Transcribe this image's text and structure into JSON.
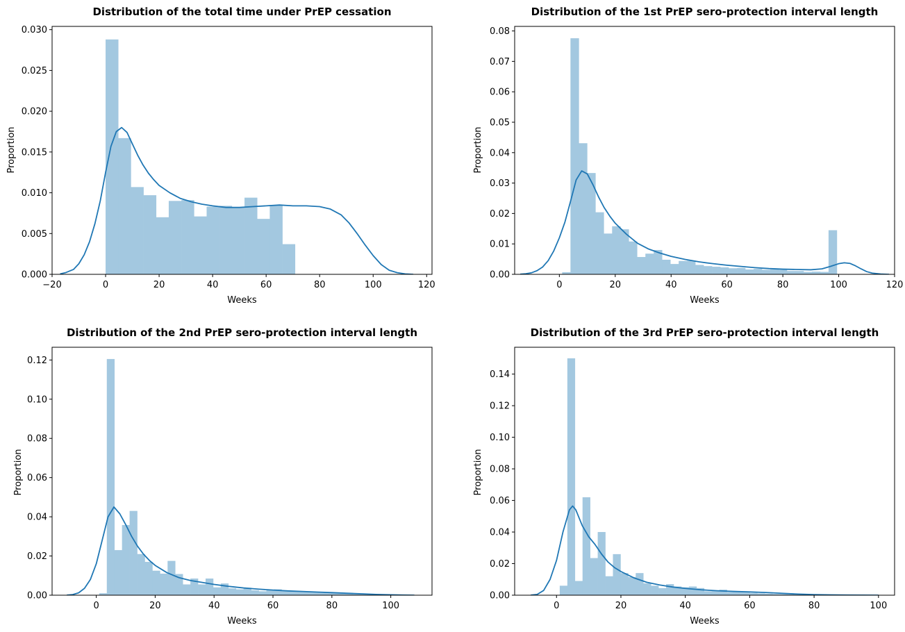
{
  "colors": {
    "bar_fill": "#a3c8e0",
    "kde_line": "#1f77b4",
    "axes": "#000000",
    "background": "#ffffff"
  },
  "chart_data": [
    {
      "type": "bar",
      "subtype": "histogram_with_kde",
      "title": "Distribution of the total time under PrEP cessation",
      "xlabel": "Weeks",
      "ylabel": "Proportion",
      "xlim": [
        -20,
        122
      ],
      "ylim": [
        0,
        0.0304
      ],
      "xticks": [
        -20,
        0,
        20,
        40,
        60,
        80,
        100,
        120
      ],
      "yticks": [
        0.0,
        0.005,
        0.01,
        0.015,
        0.02,
        0.025,
        0.03
      ],
      "ytick_labels": [
        "0.000",
        "0.005",
        "0.010",
        "0.015",
        "0.020",
        "0.025",
        "0.030"
      ],
      "grid": false,
      "bins": {
        "start": 0,
        "width": 4.72,
        "values": [
          0.0288,
          0.0167,
          0.0107,
          0.0097,
          0.007,
          0.009,
          0.0091,
          0.0071,
          0.0083,
          0.0084,
          0.0082,
          0.0094,
          0.0068,
          0.0085,
          0.0037
        ]
      },
      "kde": {
        "x": [
          -17,
          -15,
          -12,
          -10,
          -8,
          -6,
          -4,
          -2,
          0,
          2,
          4,
          6,
          8,
          10,
          12,
          14,
          16,
          18,
          20,
          24,
          28,
          32,
          36,
          40,
          45,
          50,
          55,
          60,
          65,
          70,
          75,
          80,
          84,
          88,
          91,
          94,
          97,
          100,
          103,
          106,
          109,
          112,
          115
        ],
        "y": [
          5e-05,
          0.0002,
          0.0006,
          0.0013,
          0.0024,
          0.004,
          0.0062,
          0.009,
          0.0125,
          0.0157,
          0.0175,
          0.018,
          0.0174,
          0.016,
          0.0146,
          0.0134,
          0.0124,
          0.0116,
          0.0109,
          0.01,
          0.0093,
          0.0089,
          0.0086,
          0.0084,
          0.0082,
          0.0082,
          0.0083,
          0.0084,
          0.0085,
          0.0084,
          0.0084,
          0.0083,
          0.008,
          0.0073,
          0.0063,
          0.005,
          0.0036,
          0.0023,
          0.0012,
          0.0005,
          0.0002,
          5e-05,
          0.0
        ]
      }
    },
    {
      "type": "bar",
      "subtype": "histogram_with_kde",
      "title": "Distribution of the 1st PrEP sero-protection interval length",
      "xlabel": "Weeks",
      "ylabel": "Proportion",
      "xlim": [
        -16,
        120
      ],
      "ylim": [
        0,
        0.0815
      ],
      "xticks": [
        -20,
        0,
        20,
        40,
        60,
        80,
        100,
        120
      ],
      "yticks": [
        0.0,
        0.01,
        0.02,
        0.03,
        0.04,
        0.05,
        0.06,
        0.07,
        0.08
      ],
      "ytick_labels": [
        "0.00",
        "0.01",
        "0.02",
        "0.03",
        "0.04",
        "0.05",
        "0.06",
        "0.07",
        "0.08"
      ],
      "grid": false,
      "bins": {
        "start": 1,
        "width": 2.98,
        "values": [
          0.0007,
          0.0776,
          0.0431,
          0.0333,
          0.0204,
          0.0134,
          0.0158,
          0.0148,
          0.0108,
          0.0057,
          0.0068,
          0.008,
          0.0048,
          0.0034,
          0.0044,
          0.0045,
          0.0031,
          0.0027,
          0.0025,
          0.0023,
          0.002,
          0.0021,
          0.0016,
          0.0018,
          0.0015,
          0.0016,
          0.0015,
          0.0011,
          0.0011,
          0.0008,
          0.0009,
          0.0008,
          0.0145
        ]
      },
      "kde": {
        "x": [
          -14,
          -12,
          -10,
          -8,
          -6,
          -4,
          -2,
          0,
          2,
          4,
          6,
          8,
          10,
          12,
          14,
          16,
          18,
          20,
          24,
          28,
          32,
          36,
          40,
          45,
          50,
          55,
          60,
          65,
          70,
          75,
          80,
          85,
          90,
          94,
          97,
          100,
          102,
          104,
          106,
          108,
          110,
          112,
          115,
          118
        ],
        "y": [
          5e-05,
          0.0002,
          0.0005,
          0.0012,
          0.0024,
          0.0045,
          0.0077,
          0.012,
          0.0172,
          0.024,
          0.031,
          0.034,
          0.033,
          0.0295,
          0.0255,
          0.022,
          0.0192,
          0.0168,
          0.0132,
          0.0102,
          0.0083,
          0.007,
          0.0059,
          0.0049,
          0.0041,
          0.0035,
          0.003,
          0.0026,
          0.0022,
          0.0019,
          0.0017,
          0.0016,
          0.0015,
          0.0018,
          0.0026,
          0.0035,
          0.0038,
          0.0036,
          0.0028,
          0.0018,
          0.0009,
          0.0004,
          0.0001,
          0.0
        ]
      }
    },
    {
      "type": "bar",
      "subtype": "histogram_with_kde",
      "title": "Distribution of the 2nd PrEP sero-protection interval length",
      "xlabel": "Weeks",
      "ylabel": "Proportion",
      "xlim": [
        -15,
        114
      ],
      "ylim": [
        0,
        0.1265
      ],
      "xticks": [
        0,
        20,
        40,
        60,
        80,
        100
      ],
      "yticks": [
        0.0,
        0.02,
        0.04,
        0.06,
        0.08,
        0.1,
        0.12
      ],
      "ytick_labels": [
        "0.00",
        "0.02",
        "0.04",
        "0.06",
        "0.08",
        "0.10",
        "0.12"
      ],
      "grid": false,
      "bins": {
        "start": 1,
        "width": 2.58,
        "values": [
          0.001,
          0.1205,
          0.023,
          0.0358,
          0.043,
          0.021,
          0.017,
          0.0125,
          0.011,
          0.0175,
          0.0108,
          0.0055,
          0.0085,
          0.0055,
          0.0085,
          0.004,
          0.006,
          0.0035,
          0.003,
          0.0038,
          0.0025,
          0.002,
          0.0025,
          0.003,
          0.0022,
          0.002,
          0.002,
          0.0018,
          0.0015,
          0.0012,
          0.0012,
          0.001,
          0.0008,
          0.0008,
          0.0006,
          0.0006,
          0.0005,
          0.0004
        ]
      },
      "kde": {
        "x": [
          -10,
          -8,
          -6,
          -4,
          -2,
          0,
          2,
          4,
          6,
          8,
          10,
          12,
          14,
          16,
          18,
          20,
          24,
          28,
          32,
          36,
          40,
          45,
          50,
          55,
          60,
          65,
          70,
          75,
          80,
          85,
          90,
          95,
          100,
          104,
          108
        ],
        "y": [
          5e-05,
          0.0003,
          0.0012,
          0.0035,
          0.008,
          0.016,
          0.028,
          0.04,
          0.045,
          0.0415,
          0.036,
          0.03,
          0.025,
          0.021,
          0.0178,
          0.0152,
          0.0115,
          0.009,
          0.0075,
          0.0065,
          0.0055,
          0.0045,
          0.0037,
          0.0031,
          0.0026,
          0.0022,
          0.0019,
          0.0016,
          0.0013,
          0.001,
          0.0007,
          0.0004,
          0.0002,
          0.0001,
          0.0
        ]
      }
    },
    {
      "type": "bar",
      "subtype": "histogram_with_kde",
      "title": "Distribution of the 3rd PrEP sero-protection interval length",
      "xlabel": "Weeks",
      "ylabel": "Proportion",
      "xlim": [
        -13,
        105
      ],
      "ylim": [
        0,
        0.157
      ],
      "xticks": [
        0,
        20,
        40,
        60,
        80,
        100
      ],
      "yticks": [
        0.0,
        0.02,
        0.04,
        0.06,
        0.08,
        0.1,
        0.12,
        0.14
      ],
      "ytick_labels": [
        "0.00",
        "0.02",
        "0.04",
        "0.06",
        "0.08",
        "0.10",
        "0.12",
        "0.14"
      ],
      "grid": false,
      "bins": {
        "start": 1,
        "width": 2.36,
        "values": [
          0.006,
          0.15,
          0.009,
          0.062,
          0.0235,
          0.04,
          0.012,
          0.026,
          0.014,
          0.0115,
          0.014,
          0.0075,
          0.006,
          0.0045,
          0.007,
          0.0055,
          0.005,
          0.0055,
          0.0045,
          0.0025,
          0.003,
          0.0035,
          0.002,
          0.002,
          0.002,
          0.0015,
          0.0012,
          0.001,
          0.0008,
          0.0008,
          0.0006,
          0.0005,
          0.0004,
          0.0004
        ]
      },
      "kde": {
        "x": [
          -8,
          -6,
          -4,
          -2,
          0,
          2,
          4,
          5,
          6,
          8,
          10,
          12,
          14,
          16,
          18,
          20,
          24,
          28,
          32,
          36,
          40,
          45,
          50,
          55,
          60,
          65,
          70,
          75,
          80,
          85,
          90,
          95,
          100
        ],
        "y": [
          5e-05,
          0.0005,
          0.003,
          0.01,
          0.022,
          0.04,
          0.054,
          0.0565,
          0.054,
          0.044,
          0.037,
          0.032,
          0.026,
          0.021,
          0.0175,
          0.015,
          0.011,
          0.0082,
          0.0065,
          0.0052,
          0.0043,
          0.0034,
          0.0028,
          0.0024,
          0.0021,
          0.0017,
          0.0012,
          0.0007,
          0.0004,
          0.0002,
          0.0001,
          5e-05,
          0.0
        ]
      }
    }
  ]
}
